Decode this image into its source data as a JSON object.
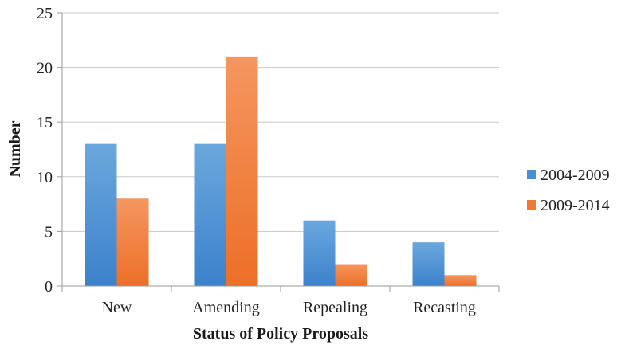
{
  "chart_data": {
    "type": "bar",
    "title": "",
    "xlabel": "Status of Policy Proposals",
    "ylabel": "Number",
    "categories": [
      "New",
      "Amending",
      "Repealing",
      "Recasting"
    ],
    "series": [
      {
        "name": "2004-2009",
        "values": [
          13,
          13,
          6,
          4
        ],
        "color": "#4a8fd4"
      },
      {
        "name": "2009-2014",
        "values": [
          8,
          21,
          2,
          1
        ],
        "color": "#f07a35"
      }
    ],
    "ylim": [
      0,
      25
    ],
    "yticks": [
      "0",
      "5",
      "10",
      "15",
      "20",
      "25"
    ],
    "grid": true,
    "legend": "right"
  }
}
